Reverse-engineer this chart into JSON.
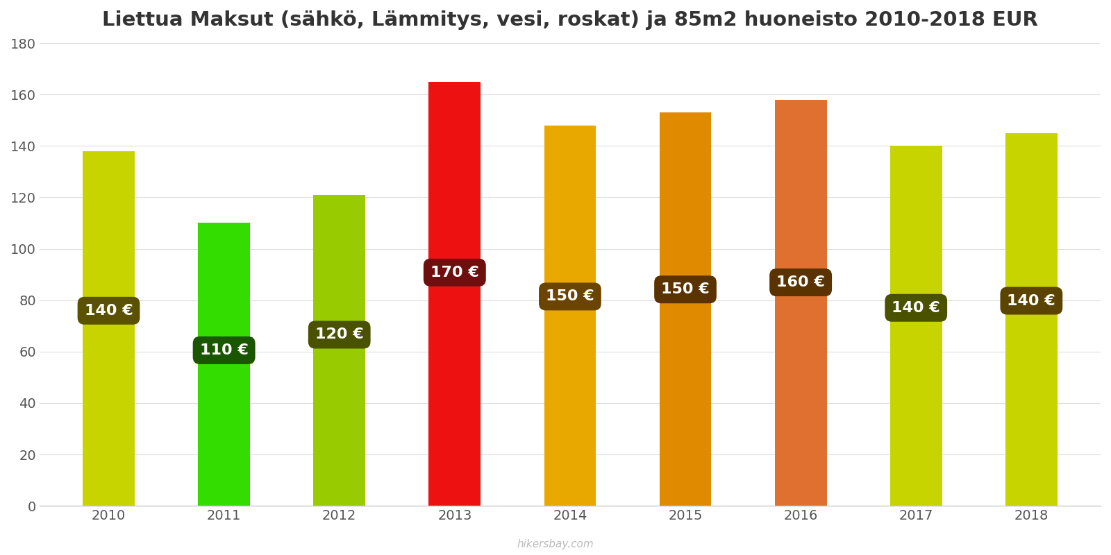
{
  "title": "Liettua Maksut (sähkö, Lämmitys, vesi, roskat) ja 85m2 huoneisto 2010-2018 EUR",
  "years": [
    2010,
    2011,
    2012,
    2013,
    2014,
    2015,
    2016,
    2017,
    2018
  ],
  "values": [
    138,
    110,
    121,
    165,
    148,
    153,
    158,
    140,
    145
  ],
  "label_values": [
    140,
    110,
    120,
    170,
    150,
    150,
    160,
    140,
    140
  ],
  "bar_colors": [
    "#c8d400",
    "#33dd00",
    "#99cc00",
    "#ee1111",
    "#e8a800",
    "#e08a00",
    "#e07030",
    "#c8d400",
    "#c8d400"
  ],
  "label_bg_colors": [
    "#5a5200",
    "#1a5500",
    "#4a5200",
    "#6e0e0e",
    "#6b4400",
    "#5a3300",
    "#5a3300",
    "#4a5200",
    "#5a4400"
  ],
  "ylim": [
    0,
    180
  ],
  "yticks": [
    0,
    20,
    40,
    60,
    80,
    100,
    120,
    140,
    160,
    180
  ],
  "watermark": "hikersbay.com",
  "title_fontsize": 21,
  "tick_fontsize": 14,
  "label_fontsize": 16
}
